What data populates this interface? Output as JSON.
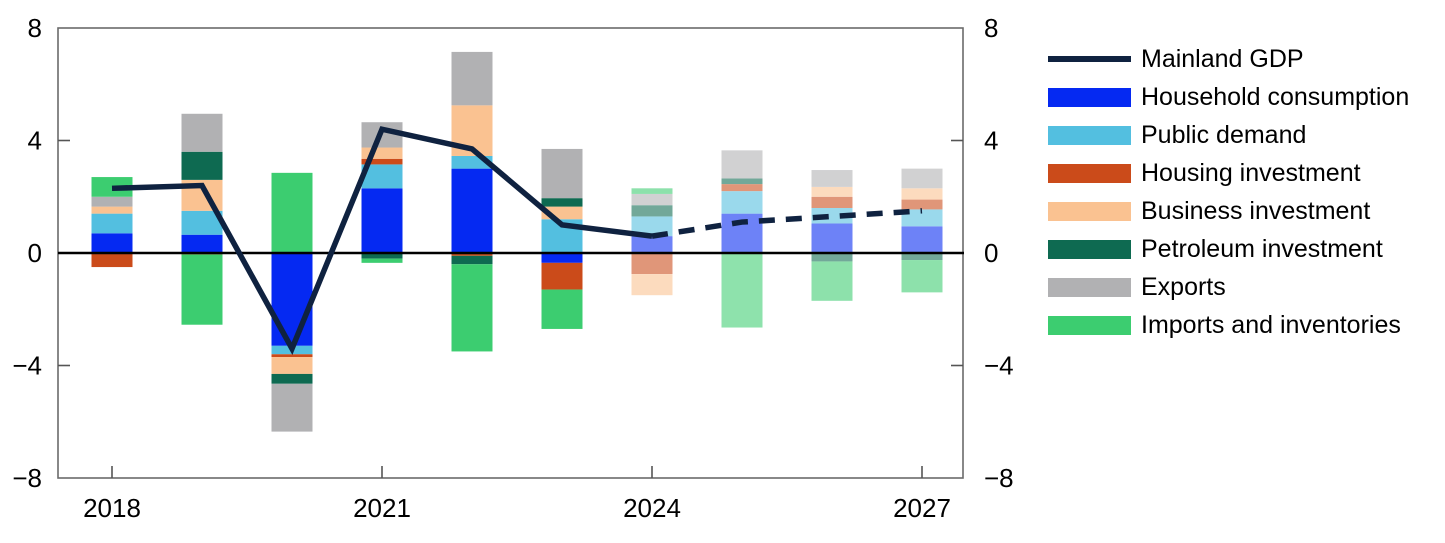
{
  "chart_data": {
    "type": "bar",
    "stacked": true,
    "title": "",
    "xlabel": "",
    "ylabel": "",
    "ylim": [
      -8,
      8
    ],
    "grid": false,
    "categories": [
      2018,
      2019,
      2020,
      2021,
      2022,
      2023,
      2024,
      2025,
      2026,
      2027
    ],
    "series": [
      {
        "name": "Household consumption",
        "color": "#0529f2",
        "values": [
          0.7,
          0.65,
          -3.3,
          2.3,
          3.0,
          -0.35,
          0.6,
          1.4,
          1.05,
          0.95
        ]
      },
      {
        "name": "Public demand",
        "color": "#53bfe0",
        "values": [
          0.7,
          0.85,
          -0.3,
          0.85,
          0.45,
          1.2,
          0.7,
          0.8,
          0.55,
          0.6
        ]
      },
      {
        "name": "Housing investment",
        "color": "#cb4b1a",
        "values": [
          -0.5,
          -0.05,
          -0.1,
          0.2,
          -0.1,
          -0.95,
          -0.75,
          0.25,
          0.4,
          0.35
        ]
      },
      {
        "name": "Business investment",
        "color": "#fac291",
        "values": [
          0.25,
          1.1,
          -0.6,
          0.4,
          1.8,
          0.45,
          -0.75,
          0.0,
          0.35,
          0.4
        ]
      },
      {
        "name": "Petroleum investment",
        "color": "#0e6a51",
        "values": [
          0.0,
          1.0,
          -0.35,
          -0.2,
          -0.3,
          0.3,
          0.4,
          0.2,
          -0.3,
          -0.25
        ]
      },
      {
        "name": "Exports",
        "color": "#b1b1b3",
        "values": [
          0.35,
          1.35,
          -1.7,
          0.9,
          1.9,
          1.75,
          0.4,
          1.0,
          0.6,
          0.7
        ]
      },
      {
        "name": "Imports and inventories",
        "color": "#3ccd70",
        "values": [
          0.7,
          -2.5,
          2.85,
          -0.15,
          -3.1,
          -1.4,
          0.2,
          -2.65,
          -1.4,
          -1.15
        ]
      }
    ],
    "line": {
      "name": "Mainland GDP",
      "color": "#0f2240",
      "values": [
        2.3,
        2.4,
        -3.4,
        4.4,
        3.7,
        1.0,
        0.6,
        1.1,
        1.3,
        1.5
      ],
      "dashed_from_year": 2024
    },
    "projection_start_year": 2024,
    "axes": {
      "y_tick_values": [
        8,
        4,
        0,
        -4,
        -8
      ],
      "y_tick_labels_left": [
        "8",
        "4",
        "0",
        "−4",
        "−8"
      ],
      "y_tick_labels_right": [
        "8",
        "4",
        "0",
        "−4",
        "−8"
      ],
      "x_tick_years": [
        2018,
        2021,
        2024,
        2027
      ],
      "x_tick_labels": [
        "2018",
        "2021",
        "2024",
        "2027"
      ],
      "legend_position": "right"
    }
  }
}
